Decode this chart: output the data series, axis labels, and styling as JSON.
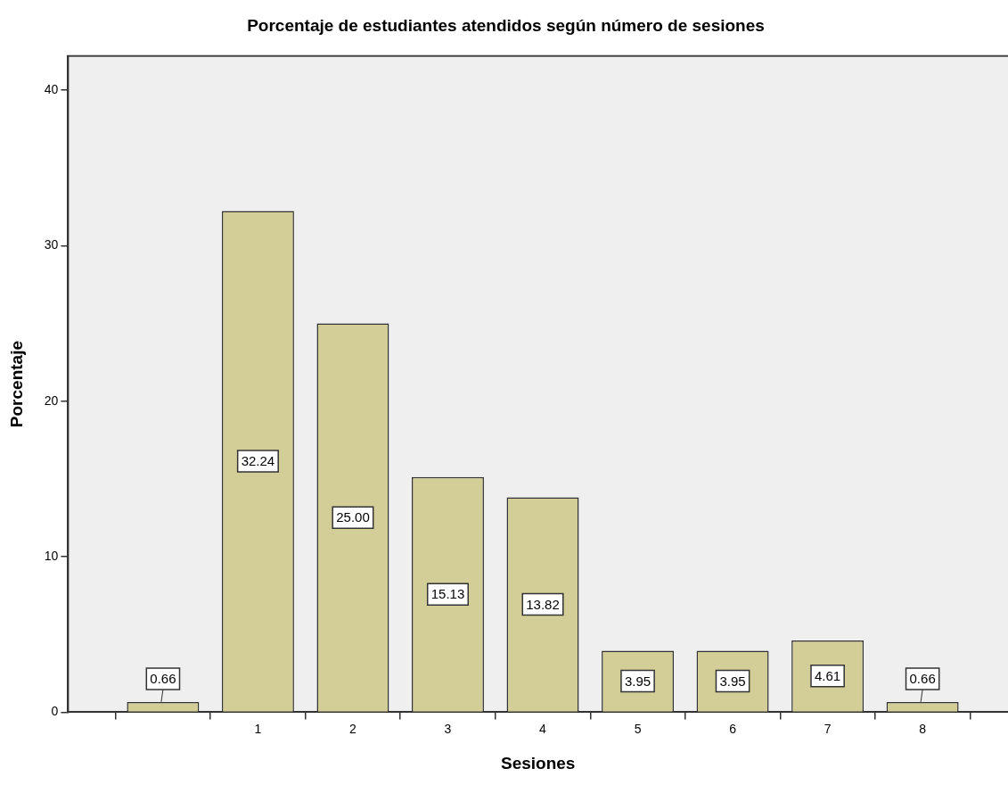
{
  "chart_data": {
    "type": "bar",
    "title": "Porcentaje de estudiantes atendidos según número de sesiones",
    "xlabel": "Sesiones",
    "ylabel": "Porcentaje",
    "categories": [
      null,
      "1",
      "2",
      "3",
      "4",
      "5",
      "6",
      "7",
      "8"
    ],
    "values": [
      0.66,
      32.24,
      25.0,
      15.13,
      13.82,
      3.95,
      3.95,
      4.61,
      0.66
    ],
    "value_labels": [
      "0.66",
      "32.24",
      "25.00",
      "15.13",
      "13.82",
      "3.95",
      "3.95",
      "4.61",
      "0.66"
    ],
    "color": "#d3ce97",
    "ylim": [
      0,
      42.2
    ],
    "yticks": [
      0,
      10,
      20,
      30,
      40
    ],
    "grid": false,
    "legend": false
  }
}
